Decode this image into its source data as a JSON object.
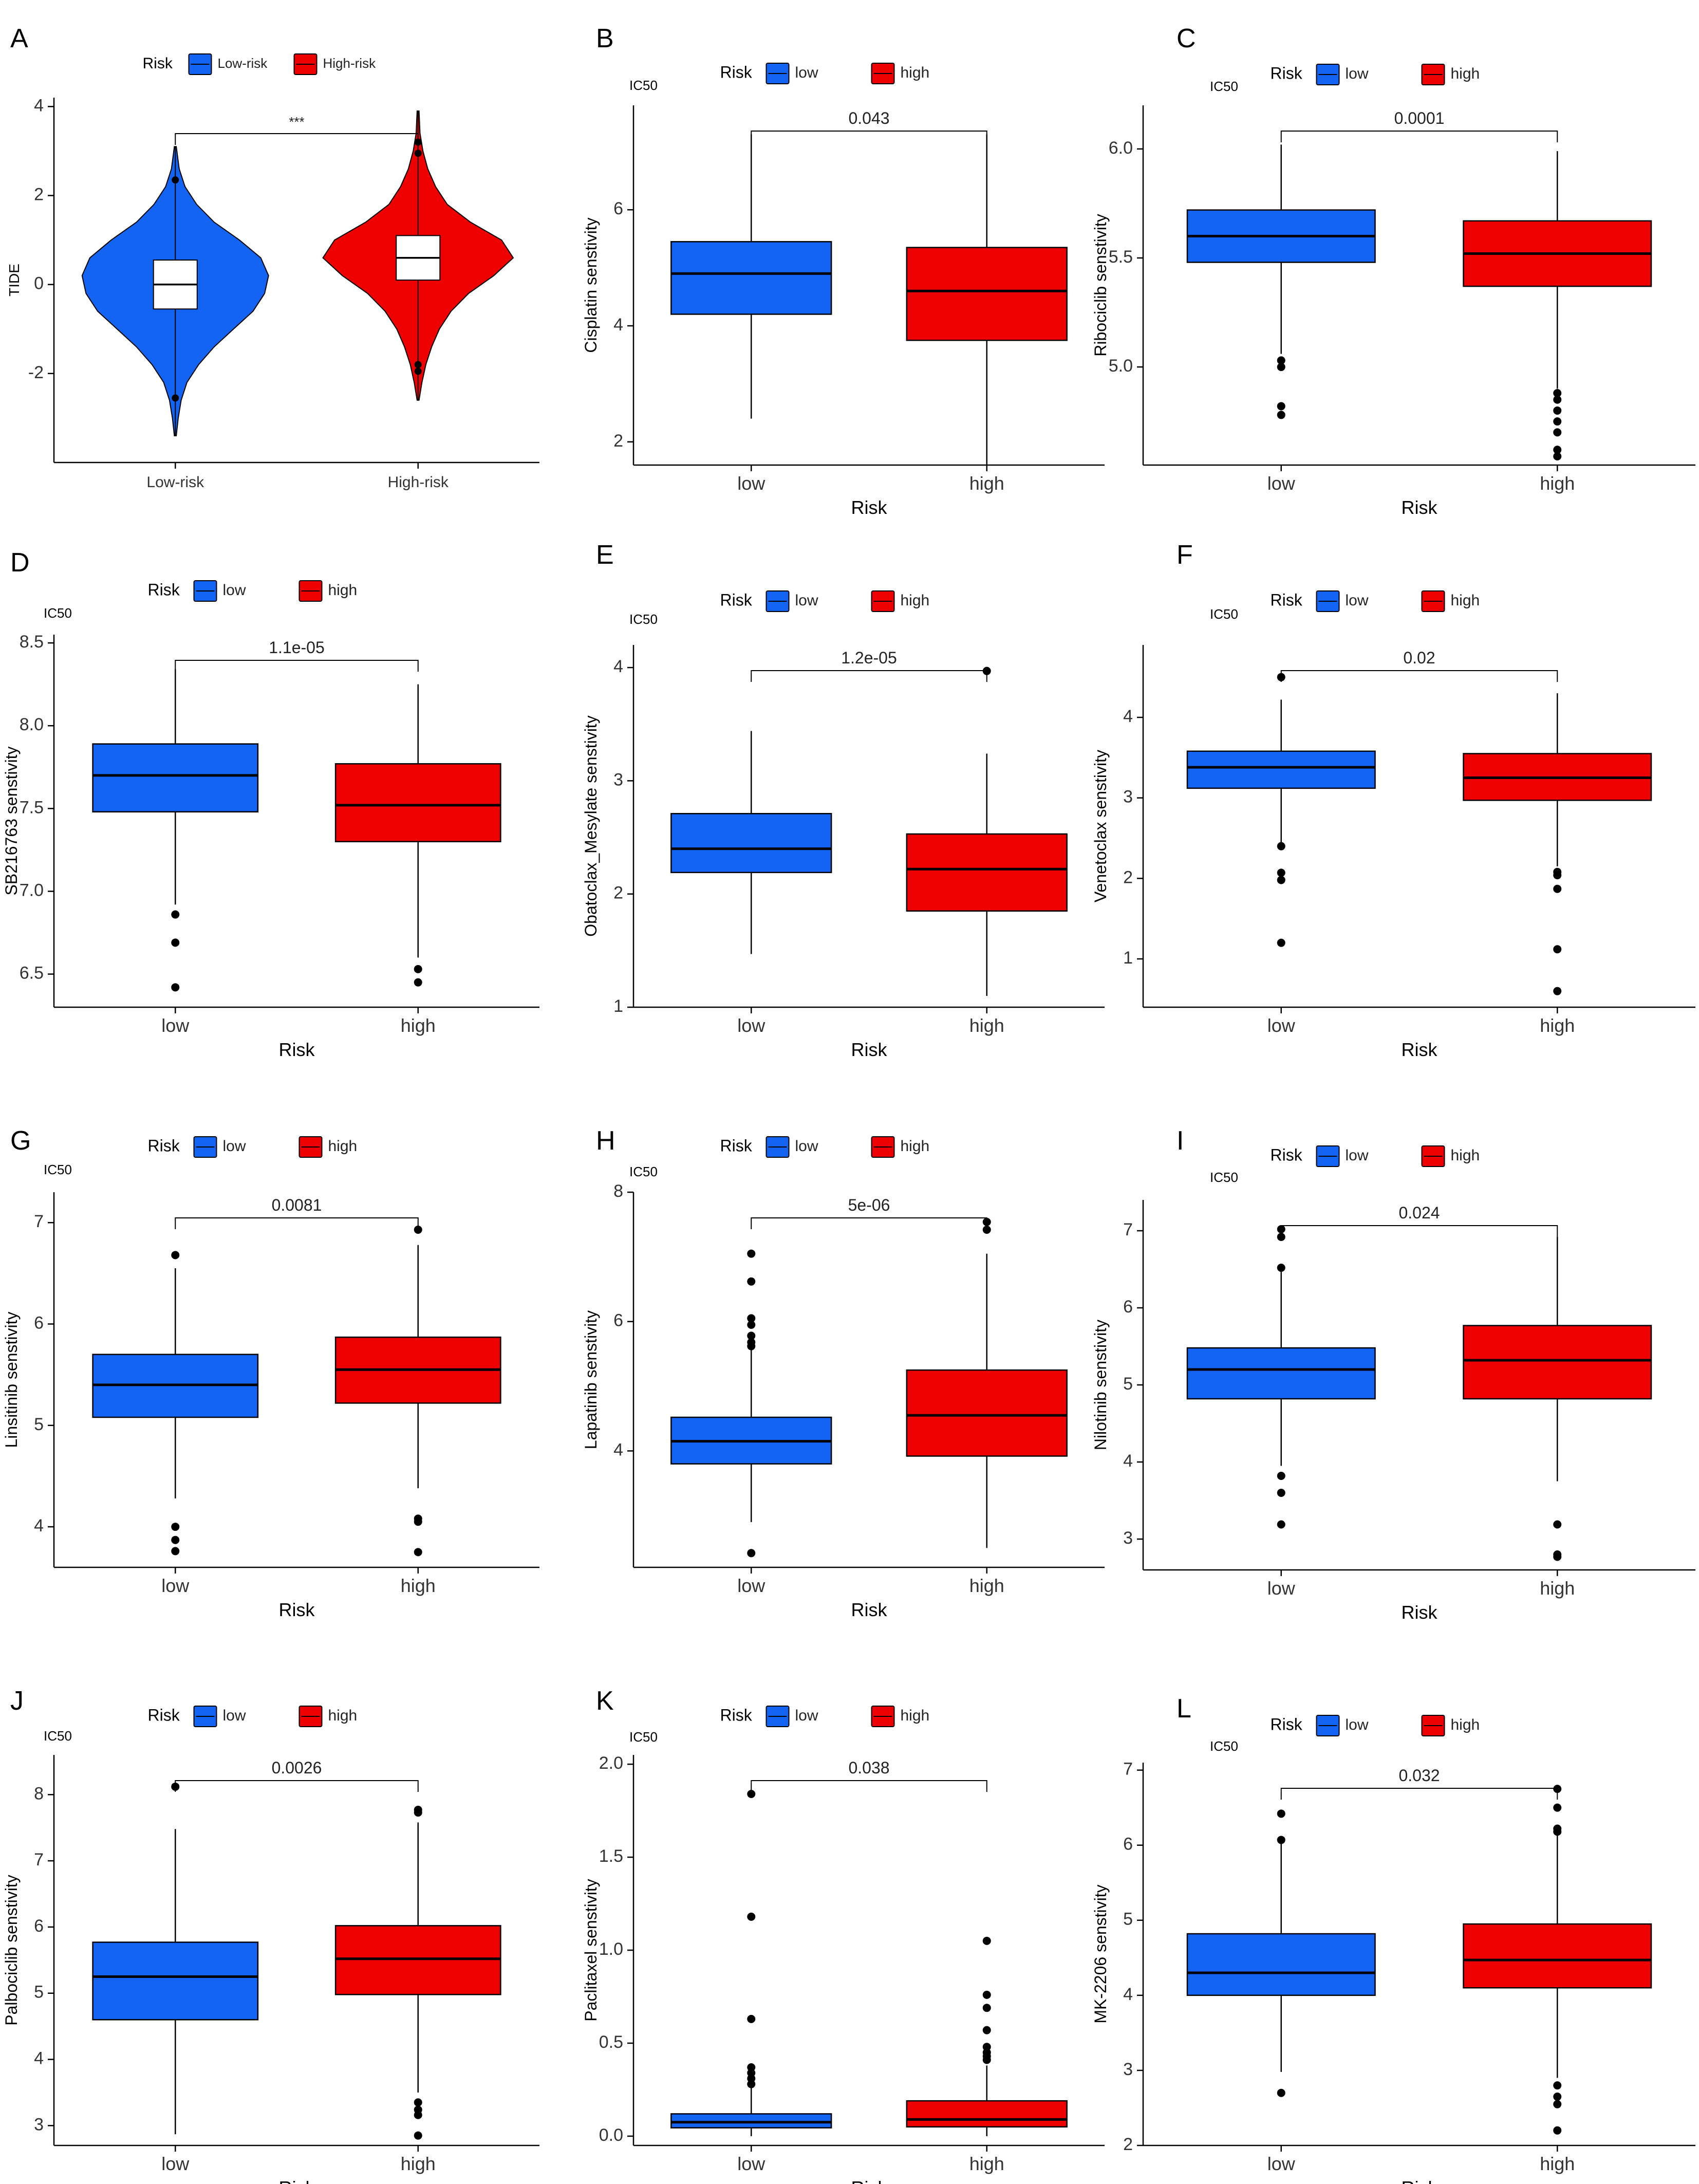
{
  "figure": {
    "colors": {
      "low": "#1464F4",
      "high": "#EE0000",
      "axis": "#000000",
      "text": "#333333"
    }
  },
  "chart_data": [
    {
      "panel": "A",
      "type": "violin",
      "title": "",
      "legend_title": "Risk",
      "legend_labels": [
        "Low-risk",
        "High-risk"
      ],
      "categories": [
        "Low-risk",
        "High-risk"
      ],
      "ylabel": "TIDE",
      "xlabel": "",
      "unit_label": "",
      "ylim": [
        -4,
        4.2
      ],
      "yticks": [
        -2,
        0,
        2,
        4
      ],
      "pvalue": "***",
      "series": [
        {
          "name": "Low-risk",
          "q1": -0.55,
          "median": 0.0,
          "q3": 0.55,
          "whisker_low": -2.4,
          "whisker_high": 2.3,
          "min": -3.4,
          "max": 3.1,
          "violin_y": [
            -3.4,
            -3.0,
            -2.6,
            -2.2,
            -1.8,
            -1.4,
            -1.0,
            -0.6,
            -0.2,
            0.2,
            0.6,
            1.0,
            1.4,
            1.8,
            2.2,
            2.6,
            3.1
          ],
          "violin_width": [
            0.01,
            0.03,
            0.06,
            0.12,
            0.24,
            0.4,
            0.6,
            0.8,
            0.92,
            0.96,
            0.88,
            0.66,
            0.4,
            0.22,
            0.1,
            0.04,
            0.01
          ],
          "outliers": [
            2.35,
            -2.55
          ]
        },
        {
          "name": "High-risk",
          "q1": 0.1,
          "median": 0.6,
          "q3": 1.1,
          "whisker_low": -1.6,
          "whisker_high": 2.8,
          "min": -2.6,
          "max": 3.9,
          "violin_y": [
            -2.6,
            -2.2,
            -1.8,
            -1.4,
            -1.0,
            -0.6,
            -0.2,
            0.2,
            0.6,
            1.0,
            1.4,
            1.8,
            2.2,
            2.6,
            3.0,
            3.4,
            3.9
          ],
          "violin_width": [
            0.01,
            0.04,
            0.08,
            0.14,
            0.22,
            0.34,
            0.52,
            0.78,
            0.98,
            0.86,
            0.54,
            0.3,
            0.18,
            0.1,
            0.05,
            0.02,
            0.01
          ],
          "outliers": [
            3.2,
            2.95,
            -1.8,
            -1.95
          ]
        }
      ]
    },
    {
      "panel": "B",
      "type": "box",
      "legend_title": "Risk",
      "legend_labels": [
        "low",
        "high"
      ],
      "categories": [
        "low",
        "high"
      ],
      "xlabel": "Risk",
      "ylabel": "Cisplatin senstivity",
      "unit_label": "IC50",
      "ylim": [
        1.6,
        7.8
      ],
      "yticks": [
        2,
        4,
        6
      ],
      "pvalue": "0.043",
      "series": [
        {
          "name": "low",
          "whisker_low": 2.4,
          "q1": 4.2,
          "median": 4.9,
          "q3": 5.45,
          "whisker_high": 7.3,
          "outliers": []
        },
        {
          "name": "high",
          "whisker_low": 1.6,
          "q1": 3.75,
          "median": 4.6,
          "q3": 5.35,
          "whisker_high": 7.3,
          "outliers": []
        }
      ]
    },
    {
      "panel": "C",
      "type": "box",
      "legend_title": "Risk",
      "legend_labels": [
        "low",
        "high"
      ],
      "categories": [
        "low",
        "high"
      ],
      "xlabel": "Risk",
      "ylabel": "Ribociclib senstivity",
      "unit_label": "IC50",
      "ylim": [
        4.55,
        6.2
      ],
      "yticks": [
        5.0,
        5.5,
        6.0
      ],
      "ytick_decimals": 1,
      "pvalue": "0.0001",
      "series": [
        {
          "name": "low",
          "whisker_low": 5.06,
          "q1": 5.48,
          "median": 5.6,
          "q3": 5.72,
          "whisker_high": 6.02,
          "outliers": [
            5.03,
            5.0,
            4.82,
            4.78
          ]
        },
        {
          "name": "high",
          "whisker_low": 4.9,
          "q1": 5.37,
          "median": 5.52,
          "q3": 5.67,
          "whisker_high": 5.99,
          "outliers": [
            4.88,
            4.85,
            4.8,
            4.75,
            4.7,
            4.62,
            4.59
          ]
        }
      ]
    },
    {
      "panel": "D",
      "type": "box",
      "legend_title": "Risk",
      "legend_labels": [
        "low",
        "high"
      ],
      "categories": [
        "low",
        "high"
      ],
      "xlabel": "Risk",
      "ylabel": "SB216763 senstivity",
      "unit_label": "IC50",
      "ylim": [
        6.3,
        8.55
      ],
      "yticks": [
        6.5,
        7.0,
        7.5,
        8.0,
        8.5
      ],
      "ytick_decimals": 1,
      "pvalue": "1.1e-05",
      "series": [
        {
          "name": "low",
          "whisker_low": 6.92,
          "q1": 7.48,
          "median": 7.7,
          "q3": 7.89,
          "whisker_high": 8.34,
          "outliers": [
            6.86,
            6.69,
            6.42
          ]
        },
        {
          "name": "high",
          "whisker_low": 6.6,
          "q1": 7.3,
          "median": 7.52,
          "q3": 7.77,
          "whisker_high": 8.25,
          "outliers": [
            6.53,
            6.45
          ]
        }
      ]
    },
    {
      "panel": "E",
      "type": "box",
      "legend_title": "Risk",
      "legend_labels": [
        "low",
        "high"
      ],
      "categories": [
        "low",
        "high"
      ],
      "xlabel": "Risk",
      "ylabel": "Obatoclax_Mesylate senstivity",
      "unit_label": "IC50",
      "ylim": [
        1.0,
        4.2
      ],
      "yticks": [
        1,
        2,
        3,
        4
      ],
      "pvalue": "1.2e-05",
      "series": [
        {
          "name": "low",
          "whisker_low": 1.47,
          "q1": 2.19,
          "median": 2.4,
          "q3": 2.71,
          "whisker_high": 3.44,
          "outliers": []
        },
        {
          "name": "high",
          "whisker_low": 1.1,
          "q1": 1.85,
          "median": 2.22,
          "q3": 2.53,
          "whisker_high": 3.24,
          "outliers": [
            3.97
          ]
        }
      ]
    },
    {
      "panel": "F",
      "type": "box",
      "legend_title": "Risk",
      "legend_labels": [
        "low",
        "high"
      ],
      "categories": [
        "low",
        "high"
      ],
      "xlabel": "Risk",
      "ylabel": "Venetoclax senstivity",
      "unit_label": "IC50",
      "ylim": [
        0.4,
        4.9
      ],
      "yticks": [
        1,
        2,
        3,
        4
      ],
      "pvalue": "0.02",
      "series": [
        {
          "name": "low",
          "whisker_low": 2.4,
          "q1": 3.12,
          "median": 3.38,
          "q3": 3.58,
          "whisker_high": 4.22,
          "outliers": [
            4.5,
            2.4,
            2.07,
            1.98,
            1.2
          ]
        },
        {
          "name": "high",
          "whisker_low": 2.15,
          "q1": 2.97,
          "median": 3.25,
          "q3": 3.55,
          "whisker_high": 4.3,
          "outliers": [
            2.08,
            2.04,
            1.87,
            1.12,
            0.6
          ]
        }
      ]
    },
    {
      "panel": "G",
      "type": "box",
      "legend_title": "Risk",
      "legend_labels": [
        "low",
        "high"
      ],
      "categories": [
        "low",
        "high"
      ],
      "xlabel": "Risk",
      "ylabel": "Linsitinib senstivity",
      "unit_label": "IC50",
      "ylim": [
        3.6,
        7.3
      ],
      "yticks": [
        4,
        5,
        6,
        7
      ],
      "pvalue": "0.0081",
      "series": [
        {
          "name": "low",
          "whisker_low": 4.28,
          "q1": 5.08,
          "median": 5.4,
          "q3": 5.7,
          "whisker_high": 6.55,
          "outliers": [
            6.68,
            4.0,
            3.87,
            3.76
          ]
        },
        {
          "name": "high",
          "whisker_low": 4.38,
          "q1": 5.22,
          "median": 5.55,
          "q3": 5.87,
          "whisker_high": 6.78,
          "outliers": [
            6.93,
            4.08,
            4.05,
            3.75
          ]
        }
      ]
    },
    {
      "panel": "H",
      "type": "box",
      "legend_title": "Risk",
      "legend_labels": [
        "low",
        "high"
      ],
      "categories": [
        "low",
        "high"
      ],
      "xlabel": "Risk",
      "ylabel": "Lapatinib senstivity",
      "unit_label": "IC50",
      "ylim": [
        2.2,
        8.0
      ],
      "yticks": [
        4,
        6,
        8
      ],
      "pvalue": "5e-06",
      "series": [
        {
          "name": "low",
          "whisker_low": 2.9,
          "q1": 3.8,
          "median": 4.15,
          "q3": 4.52,
          "whisker_high": 5.56,
          "outliers": [
            7.05,
            6.62,
            6.05,
            5.95,
            5.78,
            5.68,
            5.62,
            2.42
          ]
        },
        {
          "name": "high",
          "whisker_low": 2.5,
          "q1": 3.92,
          "median": 4.55,
          "q3": 5.25,
          "whisker_high": 7.05,
          "outliers": [
            7.54,
            7.42
          ]
        }
      ]
    },
    {
      "panel": "I",
      "type": "box",
      "legend_title": "Risk",
      "legend_labels": [
        "low",
        "high"
      ],
      "categories": [
        "low",
        "high"
      ],
      "xlabel": "Risk",
      "ylabel": "Nilotinib senstivity",
      "unit_label": "IC50",
      "ylim": [
        2.6,
        7.4
      ],
      "yticks": [
        3,
        4,
        5,
        6,
        7
      ],
      "pvalue": "0.024",
      "series": [
        {
          "name": "low",
          "whisker_low": 3.95,
          "q1": 4.82,
          "median": 5.2,
          "q3": 5.48,
          "whisker_high": 6.5,
          "outliers": [
            7.02,
            6.92,
            6.52,
            3.82,
            3.6,
            3.19
          ]
        },
        {
          "name": "high",
          "whisker_low": 3.75,
          "q1": 4.82,
          "median": 5.32,
          "q3": 5.77,
          "whisker_high": 6.92,
          "outliers": [
            3.19,
            2.8,
            2.77
          ]
        }
      ]
    },
    {
      "panel": "J",
      "type": "box",
      "legend_title": "Risk",
      "legend_labels": [
        "low",
        "high"
      ],
      "categories": [
        "low",
        "high"
      ],
      "xlabel": "Risk",
      "ylabel": "Palbociclib senstivity",
      "unit_label": "IC50",
      "ylim": [
        2.7,
        8.6
      ],
      "yticks": [
        3,
        4,
        5,
        6,
        7,
        8
      ],
      "pvalue": "0.0026",
      "series": [
        {
          "name": "low",
          "whisker_low": 2.87,
          "q1": 4.6,
          "median": 5.25,
          "q3": 5.77,
          "whisker_high": 7.48,
          "outliers": [
            8.12
          ]
        },
        {
          "name": "high",
          "whisker_low": 3.5,
          "q1": 4.98,
          "median": 5.52,
          "q3": 6.02,
          "whisker_high": 7.58,
          "outliers": [
            7.77,
            7.73,
            3.35,
            3.24,
            3.16,
            2.85
          ]
        }
      ]
    },
    {
      "panel": "K",
      "type": "box",
      "legend_title": "Risk",
      "legend_labels": [
        "low",
        "high"
      ],
      "categories": [
        "low",
        "high"
      ],
      "xlabel": "Risk",
      "ylabel": "Paclitaxel senstivity",
      "unit_label": "IC50",
      "ylim": [
        -0.05,
        2.05
      ],
      "yticks": [
        0.0,
        0.5,
        1.0,
        1.5,
        2.0
      ],
      "ytick_decimals": 1,
      "pvalue": "0.038",
      "series": [
        {
          "name": "low",
          "whisker_low": 0.0,
          "q1": 0.045,
          "median": 0.075,
          "q3": 0.12,
          "whisker_high": 0.26,
          "outliers": [
            1.84,
            1.18,
            0.63,
            0.37,
            0.34,
            0.31,
            0.28
          ]
        },
        {
          "name": "high",
          "whisker_low": 0.0,
          "q1": 0.05,
          "median": 0.09,
          "q3": 0.19,
          "whisker_high": 0.38,
          "outliers": [
            1.05,
            0.76,
            0.69,
            0.57,
            0.48,
            0.45,
            0.43,
            0.41
          ]
        }
      ]
    },
    {
      "panel": "L",
      "type": "box",
      "legend_title": "Risk",
      "legend_labels": [
        "low",
        "high"
      ],
      "categories": [
        "low",
        "high"
      ],
      "xlabel": "Risk",
      "ylabel": "MK-2206 senstivity",
      "unit_label": "IC50",
      "ylim": [
        2.0,
        7.1
      ],
      "yticks": [
        2,
        3,
        4,
        5,
        6,
        7
      ],
      "pvalue": "0.032",
      "series": [
        {
          "name": "low",
          "whisker_low": 2.98,
          "q1": 4.0,
          "median": 4.3,
          "q3": 4.82,
          "whisker_high": 6.05,
          "outliers": [
            6.42,
            6.07,
            2.7
          ]
        },
        {
          "name": "high",
          "whisker_low": 2.9,
          "q1": 4.1,
          "median": 4.47,
          "q3": 4.95,
          "whisker_high": 6.15,
          "outliers": [
            6.75,
            6.5,
            6.22,
            6.18,
            2.8,
            2.65,
            2.55,
            2.2
          ]
        }
      ]
    }
  ]
}
